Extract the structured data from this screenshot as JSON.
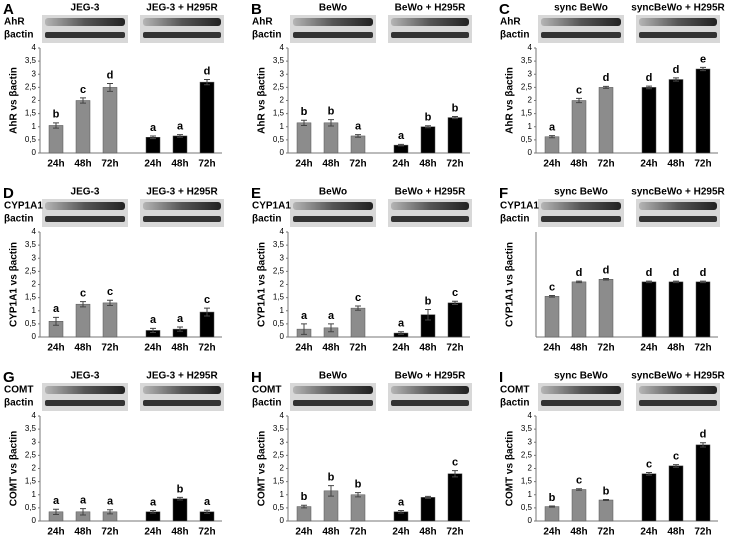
{
  "chart_data": [
    {
      "type": "bar",
      "panel": "A",
      "groups": [
        "JEG-3",
        "JEG-3 + H295R"
      ],
      "blot_labels": [
        "AhR",
        "βactin"
      ],
      "ylabel": "AhR vs βactin",
      "categories": [
        "24h",
        "48h",
        "72h",
        "24h",
        "48h",
        "72h"
      ],
      "values": [
        1.05,
        2.0,
        2.5,
        0.6,
        0.65,
        2.7
      ],
      "errors": [
        0.1,
        0.1,
        0.15,
        0.05,
        0.05,
        0.1
      ],
      "annotations": [
        "b",
        "c",
        "d",
        "a",
        "a",
        "d"
      ],
      "colors": [
        "#8c8c8c",
        "#8c8c8c",
        "#8c8c8c",
        "#000000",
        "#000000",
        "#000000"
      ],
      "ylim": [
        0,
        4
      ],
      "yticks": [
        0,
        {
          "value": 0.5,
          "label": "0,5"
        },
        1,
        {
          "value": 1.5,
          "label": "1,5"
        },
        2,
        {
          "value": 2.5,
          "label": "2,5"
        },
        3,
        {
          "value": 3.5,
          "label": "3,5"
        },
        4
      ]
    },
    {
      "type": "bar",
      "panel": "B",
      "groups": [
        "BeWo",
        "BeWo + H295R"
      ],
      "blot_labels": [
        "AhR",
        "βactin"
      ],
      "ylabel": "AhR vs βactin",
      "categories": [
        "24h",
        "48h",
        "72h",
        "24h",
        "48h",
        "72h"
      ],
      "values": [
        1.15,
        1.15,
        0.65,
        0.3,
        1.0,
        1.35
      ],
      "errors": [
        0.1,
        0.12,
        0.05,
        0.03,
        0.04,
        0.04
      ],
      "annotations": [
        "b",
        "b",
        "a",
        "a",
        "b",
        "b"
      ],
      "colors": [
        "#8c8c8c",
        "#8c8c8c",
        "#8c8c8c",
        "#000000",
        "#000000",
        "#000000"
      ],
      "ylim": [
        0,
        4
      ],
      "yticks": [
        0,
        {
          "value": 0.5,
          "label": "0,5"
        },
        1,
        {
          "value": 1.5,
          "label": "1,5"
        },
        2,
        {
          "value": 2.5,
          "label": "2,5"
        },
        3,
        {
          "value": 3.5,
          "label": "3,5"
        },
        4
      ]
    },
    {
      "type": "bar",
      "panel": "C",
      "groups": [
        "sync BeWo",
        "syncBeWo + H295R"
      ],
      "blot_labels": [
        "AhR",
        "βactin"
      ],
      "ylabel": "AhR vs βactin",
      "categories": [
        "24h",
        "48h",
        "72h",
        "24h",
        "48h",
        "72h"
      ],
      "values": [
        0.62,
        2.0,
        2.5,
        2.5,
        2.8,
        3.2
      ],
      "errors": [
        0.04,
        0.08,
        0.04,
        0.05,
        0.06,
        0.06
      ],
      "annotations": [
        "a",
        "c",
        "d",
        "d",
        "d",
        "e"
      ],
      "colors": [
        "#8c8c8c",
        "#8c8c8c",
        "#8c8c8c",
        "#000000",
        "#000000",
        "#000000"
      ],
      "ylim": [
        0,
        4
      ],
      "yticks": [
        0,
        {
          "value": 0.5,
          "label": "0,5"
        },
        1,
        {
          "value": 1.5,
          "label": "1,5"
        },
        2,
        {
          "value": 2.5,
          "label": "2,5"
        },
        3,
        {
          "value": 3.5,
          "label": "3,5"
        },
        4
      ]
    },
    {
      "type": "bar",
      "panel": "D",
      "groups": [
        "JEG-3",
        "JEG-3 + H295R"
      ],
      "blot_labels": [
        "CYP1A1",
        "βactin"
      ],
      "ylabel": "CYP1A1 vs βactin",
      "categories": [
        "24h",
        "48h",
        "72h",
        "24h",
        "48h",
        "72h"
      ],
      "values": [
        0.6,
        1.25,
        1.3,
        0.25,
        0.3,
        0.95
      ],
      "errors": [
        0.15,
        0.1,
        0.1,
        0.08,
        0.08,
        0.15
      ],
      "annotations": [
        "a",
        "c",
        "c",
        "a",
        "a",
        "c"
      ],
      "colors": [
        "#8c8c8c",
        "#8c8c8c",
        "#8c8c8c",
        "#000000",
        "#000000",
        "#000000"
      ],
      "ylim": [
        0,
        4
      ],
      "yticks": [
        0,
        {
          "value": 0.5,
          "label": "0,5"
        },
        1,
        {
          "value": 1.5,
          "label": "1,5"
        },
        2,
        {
          "value": 2.5,
          "label": "2,5"
        },
        3,
        {
          "value": 3.5,
          "label": "3,5"
        },
        4
      ]
    },
    {
      "type": "bar",
      "panel": "E",
      "groups": [
        "BeWo",
        "BeWo + H295R"
      ],
      "blot_labels": [
        "CYP1A1",
        "βactin"
      ],
      "ylabel": "CYP1A1 vs βactin",
      "categories": [
        "24h",
        "48h",
        "72h",
        "24h",
        "48h",
        "72h"
      ],
      "values": [
        0.3,
        0.35,
        1.1,
        0.15,
        0.85,
        1.3
      ],
      "errors": [
        0.2,
        0.15,
        0.08,
        0.05,
        0.2,
        0.06
      ],
      "annotations": [
        "a",
        "a",
        "c",
        "a",
        "b",
        "c"
      ],
      "colors": [
        "#8c8c8c",
        "#8c8c8c",
        "#8c8c8c",
        "#000000",
        "#000000",
        "#000000"
      ],
      "ylim": [
        0,
        4
      ],
      "yticks": [
        0,
        {
          "value": 0.5,
          "label": "0,5"
        },
        1,
        {
          "value": 1.5,
          "label": "1,5"
        },
        2,
        {
          "value": 2.5,
          "label": "2,5"
        },
        3,
        {
          "value": 3.5,
          "label": "3,5"
        },
        4
      ]
    },
    {
      "type": "bar",
      "panel": "F",
      "groups": [
        "sync BeWo",
        "syncBeWo + H295R"
      ],
      "blot_labels": [
        "CYP1A1",
        "βactin"
      ],
      "ylabel": "CYP1A1 vs βactin",
      "categories": [
        "24h",
        "48h",
        "72h",
        "24h",
        "48h",
        "72h"
      ],
      "values": [
        1.55,
        2.1,
        2.2,
        2.1,
        2.1,
        2.1
      ],
      "errors": [
        0.03,
        0.03,
        0.03,
        0.03,
        0.03,
        0.03
      ],
      "annotations": [
        "c",
        "d",
        "d",
        "d",
        "d",
        "d"
      ],
      "colors": [
        "#8c8c8c",
        "#8c8c8c",
        "#8c8c8c",
        "#000000",
        "#000000",
        "#000000"
      ],
      "ylim": [
        0,
        4
      ]
    },
    {
      "type": "bar",
      "panel": "G",
      "groups": [
        "JEG-3",
        "JEG-3 + H295R"
      ],
      "blot_labels": [
        "COMT",
        "βactin"
      ],
      "ylabel": "COMT vs βactin",
      "categories": [
        "24h",
        "48h",
        "72h",
        "24h",
        "48h",
        "72h"
      ],
      "values": [
        0.35,
        0.35,
        0.35,
        0.35,
        0.85,
        0.35
      ],
      "errors": [
        0.1,
        0.12,
        0.08,
        0.05,
        0.05,
        0.06
      ],
      "annotations": [
        "a",
        "a",
        "a",
        "a",
        "b",
        "a"
      ],
      "colors": [
        "#8c8c8c",
        "#8c8c8c",
        "#8c8c8c",
        "#000000",
        "#000000",
        "#000000"
      ],
      "ylim": [
        0,
        4
      ],
      "yticks": [
        0,
        {
          "value": 0.5,
          "label": "0,5"
        },
        1,
        {
          "value": 1.5,
          "label": "1,5"
        },
        2,
        {
          "value": 2.5,
          "label": "2,5"
        },
        3,
        {
          "value": 3.5,
          "label": "3,5"
        },
        4
      ]
    },
    {
      "type": "bar",
      "panel": "H",
      "groups": [
        "BeWo",
        "BeWo + H295R"
      ],
      "blot_labels": [
        "COMT",
        "βactin"
      ],
      "ylabel": "COMT vs βactin",
      "categories": [
        "24h",
        "48h",
        "72h",
        "24h",
        "48h",
        "72h"
      ],
      "values": [
        0.55,
        1.15,
        1.0,
        0.35,
        0.9,
        1.8
      ],
      "errors": [
        0.05,
        0.2,
        0.08,
        0.05,
        0.04,
        0.12
      ],
      "annotations": [
        "b",
        "b",
        "b",
        "a",
        null,
        "c"
      ],
      "colors": [
        "#8c8c8c",
        "#8c8c8c",
        "#8c8c8c",
        "#000000",
        "#000000",
        "#000000"
      ],
      "ylim": [
        0,
        4
      ],
      "yticks": [
        0,
        {
          "value": 0.5,
          "label": "0,5"
        },
        1,
        {
          "value": 1.5,
          "label": "1,5"
        },
        2,
        {
          "value": 2.5,
          "label": "2,5"
        },
        3,
        {
          "value": 3.5,
          "label": "3,5"
        },
        4
      ]
    },
    {
      "type": "bar",
      "panel": "I",
      "groups": [
        "sync BeWo",
        "syncBeWo + H295R"
      ],
      "blot_labels": [
        "COMT",
        "βactin"
      ],
      "ylabel": "COMT vs βactin",
      "categories": [
        "24h",
        "48h",
        "72h",
        "24h",
        "48h",
        "72h"
      ],
      "values": [
        0.55,
        1.2,
        0.8,
        1.8,
        2.1,
        2.9
      ],
      "errors": [
        0.02,
        0.03,
        0.02,
        0.05,
        0.05,
        0.08
      ],
      "annotations": [
        "b",
        "c",
        "b",
        "c",
        "c",
        "d"
      ],
      "colors": [
        "#8c8c8c",
        "#8c8c8c",
        "#8c8c8c",
        "#000000",
        "#000000",
        "#000000"
      ],
      "ylim": [
        0,
        4
      ],
      "yticks": [
        0,
        {
          "value": 0.5,
          "label": "0,5"
        },
        1,
        {
          "value": 1.5,
          "label": "1,5"
        },
        2,
        {
          "value": 2.5,
          "label": "2,5"
        },
        3,
        {
          "value": 3.5,
          "label": "3,5"
        },
        4
      ]
    }
  ]
}
